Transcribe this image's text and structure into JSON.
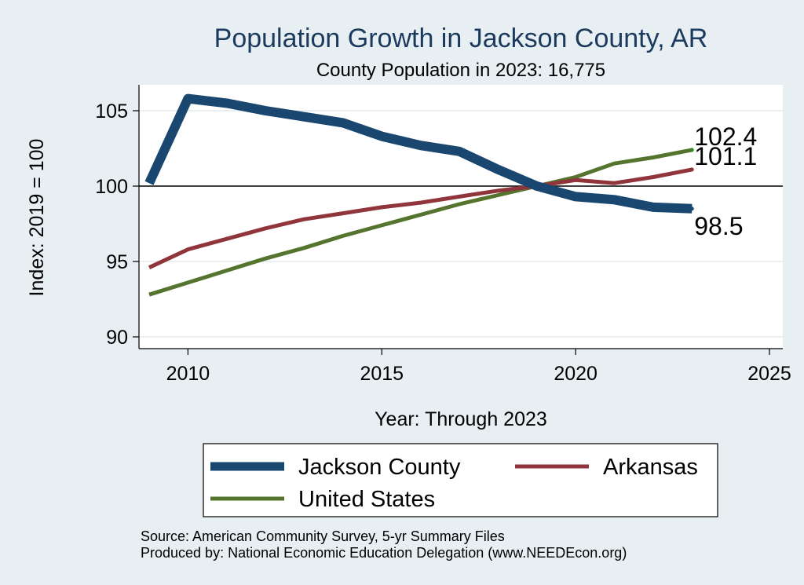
{
  "chart_data": {
    "type": "line",
    "title": "Population Growth in Jackson County, AR",
    "subtitle": "County Population in 2023: 16,775",
    "xlabel": "Year: Through 2023",
    "ylabel": "Index: 2019 = 100",
    "xlim": [
      2009,
      2025
    ],
    "ylim": [
      89.6,
      106.5
    ],
    "x_ticks": [
      2010,
      2015,
      2020,
      2025
    ],
    "y_ticks": [
      90,
      95,
      100,
      105
    ],
    "reference_line": 100,
    "grid": true,
    "legend_position": "bottom",
    "x": [
      2009,
      2010,
      2011,
      2012,
      2013,
      2014,
      2015,
      2016,
      2017,
      2018,
      2019,
      2020,
      2021,
      2022,
      2023
    ],
    "series": [
      {
        "name": "Jackson  County",
        "color": "#1a476f",
        "end_label": "98.5",
        "values": [
          100.2,
          105.8,
          105.5,
          105.0,
          104.6,
          104.2,
          103.3,
          102.7,
          102.3,
          101.1,
          100.0,
          99.3,
          99.1,
          98.6,
          98.5
        ]
      },
      {
        "name": "Arkansas",
        "color": "#90353b",
        "end_label": "101.1",
        "values": [
          94.6,
          95.8,
          96.5,
          97.2,
          97.8,
          98.2,
          98.6,
          98.9,
          99.3,
          99.7,
          100.0,
          100.4,
          100.2,
          100.6,
          101.1
        ]
      },
      {
        "name": "United States",
        "color": "#55752f",
        "end_label": "102.4",
        "values": [
          92.8,
          93.6,
          94.4,
          95.2,
          95.9,
          96.7,
          97.4,
          98.1,
          98.8,
          99.4,
          100.0,
          100.6,
          101.5,
          101.9,
          102.4
        ]
      }
    ],
    "source": "Source: American Community Survey, 5-yr Summary Files",
    "producer": "Produced by: National Economic Education Delegation (www.NEEDEcon.org)"
  }
}
